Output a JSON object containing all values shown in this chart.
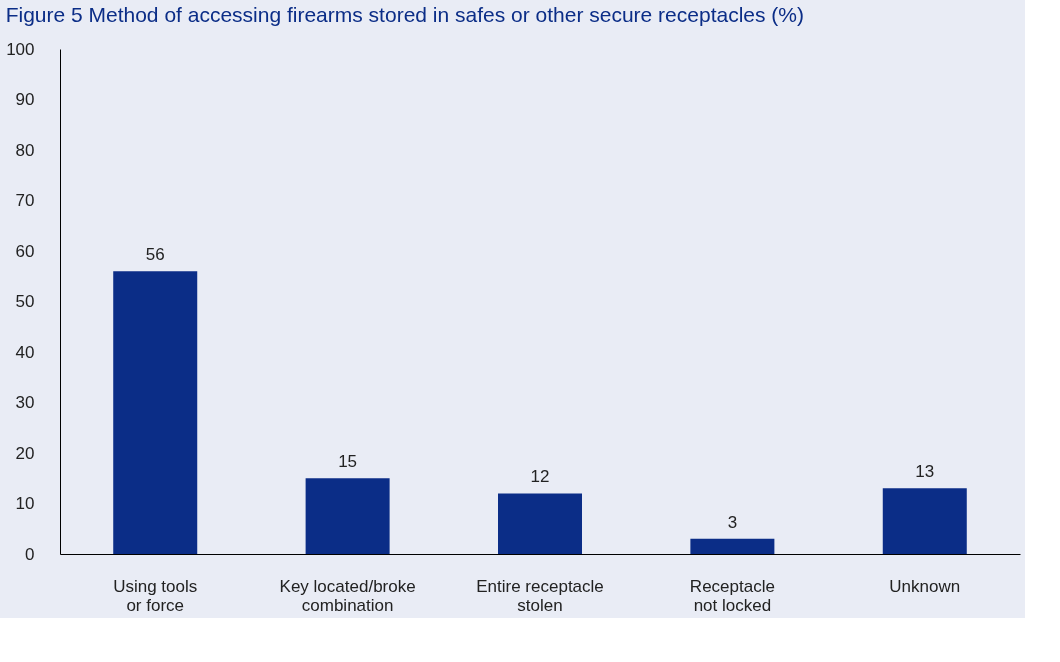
{
  "chart_data": {
    "type": "bar",
    "title": "Figure 5 Method of accessing firearms stored in safes or other secure receptacles (%)",
    "categories": [
      "Using tools\nor force",
      "Key located/broke\ncombination",
      "Entire receptacle\nstolen",
      "Receptacle\nnot locked",
      "Unknown"
    ],
    "values": [
      56,
      15,
      12,
      3,
      13
    ],
    "color": "#0b2d87",
    "ylim": [
      0,
      100
    ],
    "yticks": [
      0,
      10,
      20,
      30,
      40,
      50,
      60,
      70,
      80,
      90,
      100
    ],
    "grid": false,
    "data_labels": true
  }
}
